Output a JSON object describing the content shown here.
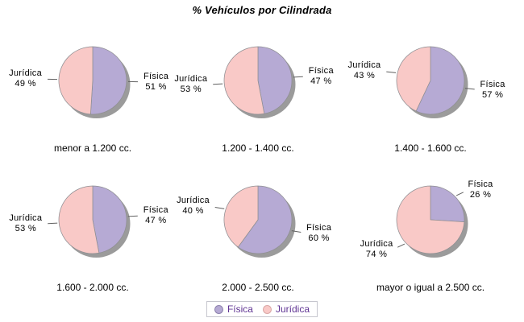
{
  "title": "% Vehículos por Cilindrada",
  "legend": {
    "labels": [
      "Física",
      "Jurídica"
    ]
  },
  "colors": {
    "slice_fisica": "#b6aad4",
    "slice_juridica": "#f9c9c7",
    "dot_border_fisica": "#8d81ad",
    "dot_border_juridica": "#d9a7a6",
    "shadow": "#9b9b9b",
    "outline": "#8f8f93",
    "leader_line": "#606060",
    "legend_text": "#5f3393",
    "legend_border": "#c6c6ce",
    "label_text": "#000000"
  },
  "chart_data": {
    "type": "pie",
    "unit": "%",
    "layout": "2 rows x 3 columns of pies, shared legend bottom center",
    "series": [
      "Física",
      "Jurídica"
    ],
    "series_colors": [
      "#b6aad4",
      "#f9c9c7"
    ],
    "pies": [
      {
        "caption": "menor a 1.200 cc.",
        "values": [
          51,
          49
        ]
      },
      {
        "caption": "1.200 - 1.400 cc.",
        "values": [
          47,
          53
        ]
      },
      {
        "caption": "1.400 - 1.600 cc.",
        "values": [
          57,
          43
        ]
      },
      {
        "caption": "1.600 - 2.000 cc.",
        "values": [
          47,
          53
        ]
      },
      {
        "caption": "2.000 - 2.500 cc.",
        "values": [
          60,
          40
        ]
      },
      {
        "caption": "mayor o igual a 2.500 cc.",
        "values": [
          26,
          74
        ]
      }
    ]
  }
}
